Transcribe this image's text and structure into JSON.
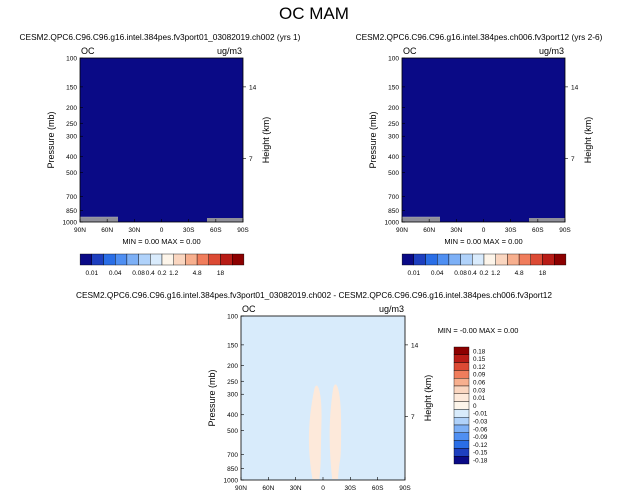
{
  "main_title": "OC MAM",
  "colors": {
    "field_dark": "#0a0a86",
    "diff_field": "#d8ebfb",
    "diff_contour": "#fde9da",
    "ground": "#8f8f99"
  },
  "chart_data": [
    {
      "id": "panel1",
      "type": "heatmap",
      "title": "CESM2.QPC6.C96.C96.g16.intel.384pes.fv3port01_03082019.ch002 (yrs 1)",
      "variable": "OC",
      "units": "ug/m3",
      "ylabel": "Pressure (mb)",
      "ylabel_right": "Height (km)",
      "x_ticks": [
        "90N",
        "60N",
        "30N",
        "0",
        "30S",
        "60S",
        "90S"
      ],
      "y_ticks": [
        "100",
        "150",
        "200",
        "250",
        "300",
        "400",
        "500",
        "700",
        "850",
        "1000"
      ],
      "y_scale": "log",
      "ylim": [
        1000,
        100
      ],
      "height_ticks": [
        "14",
        "7"
      ],
      "stats_text": "MIN =    0.00   MAX =    0.00",
      "min": 0.0,
      "max": 0.0,
      "fill": "uniform lowest level (0.00)"
    },
    {
      "id": "panel2",
      "type": "heatmap",
      "title": "CESM2.QPC6.C96.C96.g16.intel.384pes.ch006.fv3port12 (yrs 2-6)",
      "variable": "OC",
      "units": "ug/m3",
      "ylabel": "Pressure (mb)",
      "ylabel_right": "Height (km)",
      "x_ticks": [
        "90N",
        "60N",
        "30N",
        "0",
        "30S",
        "60S",
        "90S"
      ],
      "y_ticks": [
        "100",
        "150",
        "200",
        "250",
        "300",
        "400",
        "500",
        "700",
        "850",
        "1000"
      ],
      "y_scale": "log",
      "ylim": [
        1000,
        100
      ],
      "height_ticks": [
        "14",
        "7"
      ],
      "stats_text": "MIN =    0.00   MAX =    0.00",
      "min": 0.0,
      "max": 0.0,
      "fill": "uniform lowest level (0.00)"
    },
    {
      "id": "panel3",
      "type": "heatmap",
      "title": "CESM2.QPC6.C96.C96.g16.intel.384pes.fv3port01_03082019.ch002 - CESM2.QPC6.C96.C96.g16.intel.384pes.ch006.fv3port12",
      "variable": "OC",
      "units": "ug/m3",
      "ylabel": "Pressure (mb)",
      "ylabel_right": "Height (km)",
      "x_ticks": [
        "90N",
        "60N",
        "30N",
        "0",
        "30S",
        "60S",
        "90S"
      ],
      "y_ticks": [
        "100",
        "150",
        "200",
        "250",
        "300",
        "400",
        "500",
        "700",
        "850",
        "1000"
      ],
      "y_scale": "log",
      "ylim": [
        1000,
        100
      ],
      "height_ticks": [
        "14",
        "7"
      ],
      "stats_text": "MIN =   -0.00   MAX =    0.00",
      "min": -0.0,
      "max": 0.0,
      "fill": "uniform 0 to -0.01 band with small positive contour near equator"
    }
  ],
  "colorbar_abs": {
    "labels": [
      "0.01",
      "0.04",
      "0.08",
      "0.2",
      "0.4",
      "1.2",
      "4.8",
      "18"
    ],
    "colors": [
      "#0a0a86",
      "#1d3fbf",
      "#2a6ee6",
      "#4f8ff2",
      "#7db0f6",
      "#b0d2fa",
      "#d9ebfc",
      "#fdf5ea",
      "#fad6c0",
      "#f7af8e",
      "#f07d5c",
      "#dc4a34",
      "#b81c16",
      "#8c0000"
    ]
  },
  "colorbar_diff": {
    "labels": [
      "0.18",
      "0.15",
      "0.12",
      "0.09",
      "0.06",
      "0.03",
      "0.01",
      "0",
      "-0.01",
      "-0.03",
      "-0.06",
      "-0.09",
      "-0.12",
      "-0.15",
      "-0.18"
    ],
    "colors": [
      "#8c0000",
      "#b81c16",
      "#dc4a34",
      "#f07d5c",
      "#f7af8e",
      "#fad6c0",
      "#fde9da",
      "#fdf5ea",
      "#d8ebfb",
      "#b0d2fa",
      "#7db0f6",
      "#4f8ff2",
      "#2a6ee6",
      "#1d3fbf",
      "#0a0a86"
    ]
  }
}
